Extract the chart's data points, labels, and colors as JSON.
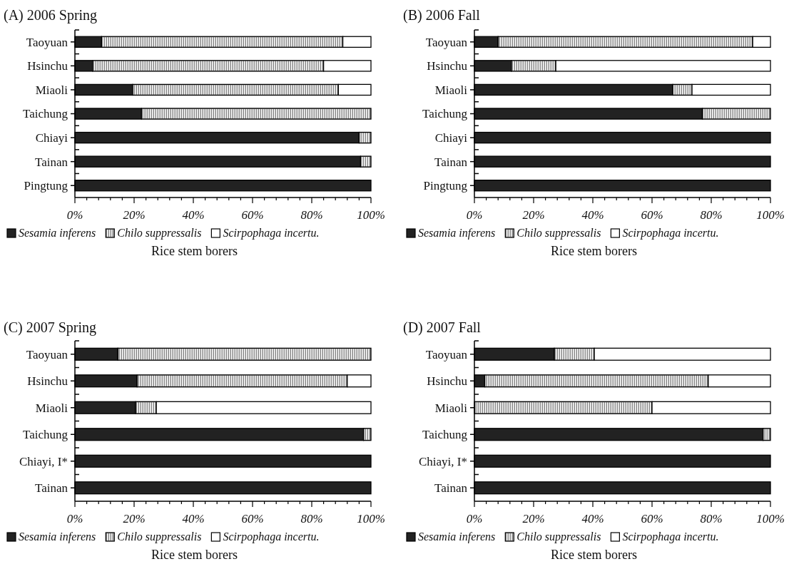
{
  "chart_data": [
    {
      "type": "bar",
      "title": "(A) 2006 Spring",
      "orientation": "horizontal",
      "stacked": true,
      "legend": "bottom",
      "xlabel": "Rice stem borers",
      "xlim": [
        0,
        100
      ],
      "xticks": [
        {
          "value": 0,
          "label": "0%"
        },
        {
          "value": 4,
          "label": null
        },
        {
          "value": 8,
          "label": null
        },
        {
          "value": 12,
          "label": null
        },
        {
          "value": 16,
          "label": null
        },
        {
          "value": 20,
          "label": "20%"
        },
        {
          "value": 24,
          "label": null
        },
        {
          "value": 28,
          "label": null
        },
        {
          "value": 32,
          "label": null
        },
        {
          "value": 36,
          "label": null
        },
        {
          "value": 40,
          "label": "40%"
        },
        {
          "value": 44,
          "label": null
        },
        {
          "value": 48,
          "label": null
        },
        {
          "value": 52,
          "label": null
        },
        {
          "value": 56,
          "label": null
        },
        {
          "value": 60,
          "label": "60%"
        },
        {
          "value": 64,
          "label": null
        },
        {
          "value": 68,
          "label": null
        },
        {
          "value": 72,
          "label": null
        },
        {
          "value": 76,
          "label": null
        },
        {
          "value": 80,
          "label": "80%"
        },
        {
          "value": 84,
          "label": null
        },
        {
          "value": 88,
          "label": null
        },
        {
          "value": 92,
          "label": null
        },
        {
          "value": 96,
          "label": null
        },
        {
          "value": 100,
          "label": "100%"
        }
      ],
      "categories": [
        "Taoyuan",
        "Hsinchu",
        "Miaoli",
        "Taichung",
        "Chiayi",
        "Tainan",
        "Pingtung"
      ],
      "series": [
        {
          "name": "Sesamia inferens",
          "color": "#222222",
          "values": [
            9,
            6,
            19.5,
            22.5,
            96,
            96.5,
            100
          ]
        },
        {
          "name": "Chilo suppressalis",
          "color": "#888888",
          "values": [
            81.5,
            78,
            69.5,
            77.5,
            4,
            3.5,
            0
          ]
        },
        {
          "name": "Scirpophaga incertu.",
          "color": "#ffffff",
          "values": [
            9.5,
            16,
            11,
            0,
            0,
            0,
            0
          ]
        }
      ]
    },
    {
      "type": "bar",
      "title": "(B) 2006 Fall",
      "orientation": "horizontal",
      "stacked": true,
      "legend": "bottom",
      "xlabel": "Rice stem borers",
      "xlim": [
        0,
        100
      ],
      "xticks": [
        {
          "value": 0,
          "label": "0%"
        },
        {
          "value": 4,
          "label": null
        },
        {
          "value": 8,
          "label": null
        },
        {
          "value": 12,
          "label": null
        },
        {
          "value": 16,
          "label": null
        },
        {
          "value": 20,
          "label": "20%"
        },
        {
          "value": 24,
          "label": null
        },
        {
          "value": 28,
          "label": null
        },
        {
          "value": 32,
          "label": null
        },
        {
          "value": 36,
          "label": null
        },
        {
          "value": 40,
          "label": "40%"
        },
        {
          "value": 44,
          "label": null
        },
        {
          "value": 48,
          "label": null
        },
        {
          "value": 52,
          "label": null
        },
        {
          "value": 56,
          "label": null
        },
        {
          "value": 60,
          "label": "60%"
        },
        {
          "value": 64,
          "label": null
        },
        {
          "value": 68,
          "label": null
        },
        {
          "value": 72,
          "label": null
        },
        {
          "value": 76,
          "label": null
        },
        {
          "value": 80,
          "label": "80%"
        },
        {
          "value": 84,
          "label": null
        },
        {
          "value": 88,
          "label": null
        },
        {
          "value": 92,
          "label": null
        },
        {
          "value": 96,
          "label": null
        },
        {
          "value": 100,
          "label": "100%"
        }
      ],
      "categories": [
        "Taoyuan",
        "Hsinchu",
        "Miaoli",
        "Taichung",
        "Chiayi",
        "Tainan",
        "Pingtung"
      ],
      "series": [
        {
          "name": "Sesamia inferens",
          "color": "#222222",
          "values": [
            8,
            12.5,
            67,
            77,
            100,
            100,
            100
          ]
        },
        {
          "name": "Chilo suppressalis",
          "color": "#888888",
          "values": [
            86,
            15,
            6.5,
            23,
            0,
            0,
            0
          ]
        },
        {
          "name": "Scirpophaga incertu.",
          "color": "#ffffff",
          "values": [
            6,
            72.5,
            26.5,
            0,
            0,
            0,
            0
          ]
        }
      ]
    },
    {
      "type": "bar",
      "title": "(C) 2007 Spring",
      "orientation": "horizontal",
      "stacked": true,
      "legend": "bottom",
      "xlabel": "Rice stem borers",
      "xlim": [
        0,
        100
      ],
      "xticks": [
        {
          "value": 0,
          "label": "0%"
        },
        {
          "value": 4,
          "label": null
        },
        {
          "value": 8,
          "label": null
        },
        {
          "value": 12,
          "label": null
        },
        {
          "value": 16,
          "label": null
        },
        {
          "value": 20,
          "label": "20%"
        },
        {
          "value": 24,
          "label": null
        },
        {
          "value": 28,
          "label": null
        },
        {
          "value": 32,
          "label": null
        },
        {
          "value": 36,
          "label": null
        },
        {
          "value": 40,
          "label": "40%"
        },
        {
          "value": 44,
          "label": null
        },
        {
          "value": 48,
          "label": null
        },
        {
          "value": 52,
          "label": null
        },
        {
          "value": 56,
          "label": null
        },
        {
          "value": 60,
          "label": "60%"
        },
        {
          "value": 64,
          "label": null
        },
        {
          "value": 68,
          "label": null
        },
        {
          "value": 72,
          "label": null
        },
        {
          "value": 76,
          "label": null
        },
        {
          "value": 80,
          "label": "80%"
        },
        {
          "value": 84,
          "label": null
        },
        {
          "value": 88,
          "label": null
        },
        {
          "value": 92,
          "label": null
        },
        {
          "value": 96,
          "label": null
        },
        {
          "value": 100,
          "label": "100%"
        }
      ],
      "categories": [
        "Taoyuan",
        "Hsinchu",
        "Miaoli",
        "Taichung",
        "Chiayi, I*",
        "Tainan"
      ],
      "series": [
        {
          "name": "Sesamia inferens",
          "color": "#222222",
          "values": [
            14.5,
            21,
            20.5,
            97.5,
            100,
            100
          ]
        },
        {
          "name": "Chilo suppressalis",
          "color": "#888888",
          "values": [
            85.5,
            71,
            7,
            2.5,
            0,
            0
          ]
        },
        {
          "name": "Scirpophaga incertu.",
          "color": "#ffffff",
          "values": [
            0,
            8,
            72.5,
            0,
            0,
            0
          ]
        }
      ]
    },
    {
      "type": "bar",
      "title": "(D) 2007 Fall",
      "orientation": "horizontal",
      "stacked": true,
      "legend": "bottom",
      "xlabel": "Rice stem borers",
      "xlim": [
        0,
        100
      ],
      "xticks": [
        {
          "value": 0,
          "label": "0%"
        },
        {
          "value": 4,
          "label": null
        },
        {
          "value": 8,
          "label": null
        },
        {
          "value": 12,
          "label": null
        },
        {
          "value": 16,
          "label": null
        },
        {
          "value": 20,
          "label": "20%"
        },
        {
          "value": 24,
          "label": null
        },
        {
          "value": 28,
          "label": null
        },
        {
          "value": 32,
          "label": null
        },
        {
          "value": 36,
          "label": null
        },
        {
          "value": 40,
          "label": "40%"
        },
        {
          "value": 44,
          "label": null
        },
        {
          "value": 48,
          "label": null
        },
        {
          "value": 52,
          "label": null
        },
        {
          "value": 56,
          "label": null
        },
        {
          "value": 60,
          "label": "60%"
        },
        {
          "value": 64,
          "label": null
        },
        {
          "value": 68,
          "label": null
        },
        {
          "value": 72,
          "label": null
        },
        {
          "value": 76,
          "label": null
        },
        {
          "value": 80,
          "label": "80%"
        },
        {
          "value": 84,
          "label": null
        },
        {
          "value": 88,
          "label": null
        },
        {
          "value": 92,
          "label": null
        },
        {
          "value": 96,
          "label": null
        },
        {
          "value": 100,
          "label": "100%"
        }
      ],
      "categories": [
        "Taoyuan",
        "Hsinchu",
        "Miaoli",
        "Taichung",
        "Chiayi, I*",
        "Tainan"
      ],
      "series": [
        {
          "name": "Sesamia inferens",
          "color": "#222222",
          "values": [
            27,
            3.5,
            0,
            97.5,
            100,
            100
          ]
        },
        {
          "name": "Chilo suppressalis",
          "color": "#888888",
          "values": [
            13.5,
            75.5,
            60,
            2.5,
            0,
            0
          ]
        },
        {
          "name": "Scirpophaga incertu.",
          "color": "#ffffff",
          "values": [
            59.5,
            21,
            40,
            0,
            0,
            0
          ]
        }
      ]
    }
  ]
}
